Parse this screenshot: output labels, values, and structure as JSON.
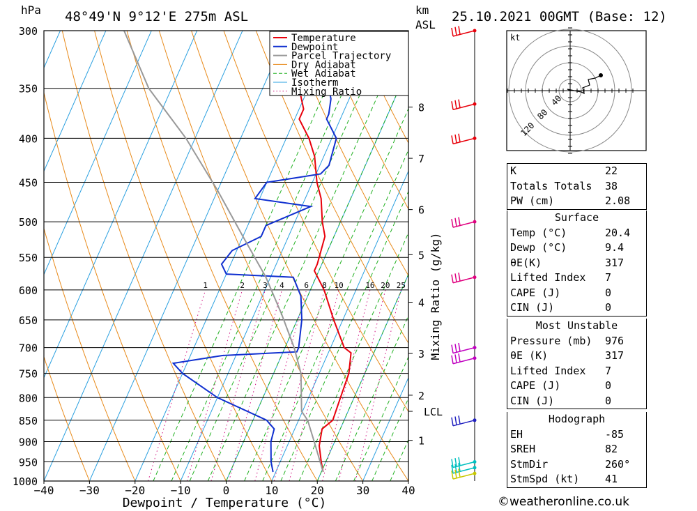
{
  "header": {
    "unit_hpa": "hPa",
    "location": "48°49'N  9°12'E  275m  ASL",
    "unit_km": "km",
    "unit_asl": "ASL",
    "datetime": "25.10.2021  00GMT  (Base: 12)"
  },
  "chart_data": {
    "type": "line",
    "title": "48°49'N  9°12'E  275m  ASL",
    "xlabel": "Dewpoint / Temperature (°C)",
    "ylabel": "hPa",
    "secondary_ylabel": "Mixing Ratio (g/kg)",
    "xlim": [
      -40,
      40
    ],
    "ylim": [
      1000,
      300
    ],
    "x_ticks": [
      -40,
      -30,
      -20,
      -10,
      0,
      10,
      20,
      30,
      40
    ],
    "pressure_levels": [
      300,
      350,
      400,
      450,
      500,
      550,
      600,
      650,
      700,
      750,
      800,
      850,
      900,
      950,
      1000
    ],
    "km_ticks": [
      {
        "label": "8",
        "p": 368
      },
      {
        "label": "7",
        "p": 422
      },
      {
        "label": "6",
        "p": 484
      },
      {
        "label": "5",
        "p": 546
      },
      {
        "label": "4",
        "p": 620
      },
      {
        "label": "3",
        "p": 711
      },
      {
        "label": "2",
        "p": 795
      },
      {
        "label": "LCL",
        "p": 830
      },
      {
        "label": "1",
        "p": 897
      }
    ],
    "mixing_ratio_labels": [
      "1",
      "2",
      "3",
      "4",
      "6",
      "8",
      "10",
      "16",
      "20",
      "25"
    ],
    "mixing_ratio_values": [
      1,
      2,
      3,
      4,
      6,
      8,
      10,
      16,
      20,
      25
    ],
    "legend": [
      "Temperature",
      "Dewpoint",
      "Parcel Trajectory",
      "Dry Adiabat",
      "Wet Adiabat",
      "Isotherm",
      "Mixing Ratio"
    ],
    "legend_position": "top-right",
    "series": [
      {
        "name": "Temperature",
        "color": "#e8000b",
        "points": [
          [
            20.4,
            976
          ],
          [
            19,
            950
          ],
          [
            17,
            910
          ],
          [
            16,
            870
          ],
          [
            17.5,
            850
          ],
          [
            17,
            800
          ],
          [
            16.5,
            750
          ],
          [
            15,
            710
          ],
          [
            13,
            700
          ],
          [
            8,
            650
          ],
          [
            3,
            600
          ],
          [
            -1,
            570
          ],
          [
            -1,
            560
          ],
          [
            -2,
            520
          ],
          [
            -4,
            500
          ],
          [
            -6.5,
            470
          ],
          [
            -9,
            450
          ],
          [
            -12,
            420
          ],
          [
            -15,
            400
          ],
          [
            -19,
            380
          ],
          [
            -19,
            370
          ],
          [
            -22,
            350
          ],
          [
            -24,
            340
          ],
          [
            -28,
            300
          ]
        ]
      },
      {
        "name": "Dewpoint",
        "color": "#1030d0",
        "points": [
          [
            9.4,
            976
          ],
          [
            8,
            950
          ],
          [
            6,
            900
          ],
          [
            5.5,
            870
          ],
          [
            3,
            850
          ],
          [
            -10,
            800
          ],
          [
            -20,
            750
          ],
          [
            -23,
            730
          ],
          [
            -13,
            715
          ],
          [
            3,
            708
          ],
          [
            3,
            700
          ],
          [
            1,
            650
          ],
          [
            -1.5,
            610
          ],
          [
            -5,
            580
          ],
          [
            -20,
            575
          ],
          [
            -22,
            560
          ],
          [
            -21,
            540
          ],
          [
            -16,
            520
          ],
          [
            -16,
            505
          ],
          [
            -8,
            480
          ],
          [
            -21,
            470
          ],
          [
            -20,
            450
          ],
          [
            -9,
            440
          ],
          [
            -8,
            430
          ],
          [
            -9,
            400
          ],
          [
            -13,
            380
          ],
          [
            -13,
            375
          ],
          [
            -14,
            360
          ],
          [
            -17,
            340
          ],
          [
            -19,
            330
          ],
          [
            -22,
            300
          ]
        ]
      },
      {
        "name": "Parcel Trajectory",
        "color": "#999999",
        "points": [
          [
            20.4,
            976
          ],
          [
            15.5,
            900
          ],
          [
            12,
            850
          ],
          [
            9.8,
            830
          ],
          [
            6,
            750
          ],
          [
            2,
            700
          ],
          [
            -4,
            640
          ],
          [
            -11,
            580
          ],
          [
            -20,
            520
          ],
          [
            -30,
            460
          ],
          [
            -42,
            400
          ],
          [
            -55,
            350
          ],
          [
            -66,
            300
          ]
        ]
      }
    ],
    "wind_barbs": [
      {
        "p": 300,
        "color": "#e8000b"
      },
      {
        "p": 365,
        "color": "#e8000b"
      },
      {
        "p": 400,
        "color": "#e8000b"
      },
      {
        "p": 500,
        "color": "#e0007f"
      },
      {
        "p": 580,
        "color": "#e0007f"
      },
      {
        "p": 700,
        "color": "#c000c0"
      },
      {
        "p": 720,
        "color": "#c000c0"
      },
      {
        "p": 850,
        "color": "#2020c0"
      },
      {
        "p": 950,
        "color": "#00c0c0"
      },
      {
        "p": 965,
        "color": "#00c0c0"
      },
      {
        "p": 980,
        "color": "#c8c800"
      }
    ],
    "hodograph": {
      "unit": "kt",
      "ring_labels": [
        "40",
        "80",
        "120"
      ],
      "trace": [
        [
          0,
          0
        ],
        [
          -2,
          1
        ],
        [
          8,
          -1
        ],
        [
          10,
          -2
        ],
        [
          9,
          2
        ],
        [
          14,
          4
        ],
        [
          13,
          8
        ],
        [
          18,
          9
        ],
        [
          22,
          11
        ]
      ]
    }
  },
  "indices": {
    "rows": [
      {
        "label": "K",
        "value": "22"
      },
      {
        "label": "Totals Totals",
        "value": "38"
      },
      {
        "label": "PW (cm)",
        "value": "2.08"
      }
    ]
  },
  "surface": {
    "title": "Surface",
    "rows": [
      {
        "label": "Temp (°C)",
        "value": "20.4"
      },
      {
        "label": "Dewp (°C)",
        "value": "9.4"
      },
      {
        "label": "θE(K)",
        "value": "317"
      },
      {
        "label": "Lifted Index",
        "value": "7"
      },
      {
        "label": "CAPE (J)",
        "value": "0"
      },
      {
        "label": "CIN (J)",
        "value": "0"
      }
    ]
  },
  "most_unstable": {
    "title": "Most Unstable",
    "rows": [
      {
        "label": "Pressure (mb)",
        "value": "976"
      },
      {
        "label": "θE (K)",
        "value": "317"
      },
      {
        "label": "Lifted Index",
        "value": "7"
      },
      {
        "label": "CAPE (J)",
        "value": "0"
      },
      {
        "label": "CIN (J)",
        "value": "0"
      }
    ]
  },
  "hodograph_table": {
    "title": "Hodograph",
    "rows": [
      {
        "label": "EH",
        "value": "-85"
      },
      {
        "label": "SREH",
        "value": "82"
      },
      {
        "label": "StmDir",
        "value": "260°"
      },
      {
        "label": "StmSpd (kt)",
        "value": "41"
      }
    ]
  },
  "footer": "©weatheronline.co.uk"
}
